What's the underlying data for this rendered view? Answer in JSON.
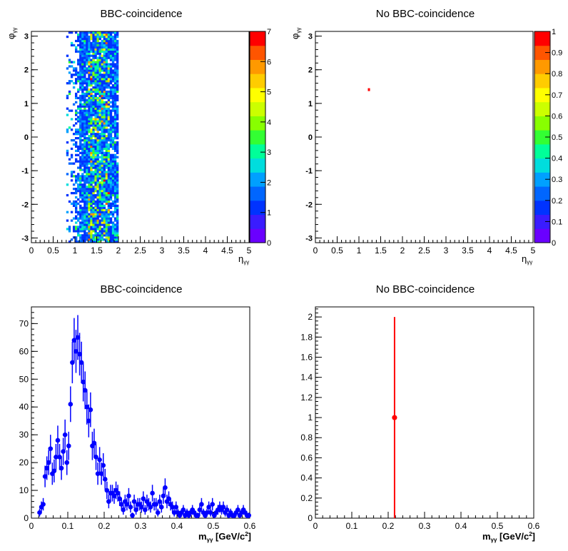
{
  "chart_data": [
    {
      "type": "heatmap",
      "title": "BBC-coincidence",
      "xlabel": "η",
      "xlabel_sub": "γγ",
      "ylabel": "φ",
      "ylabel_sub": "γγ",
      "xlim": [
        0,
        5
      ],
      "ylim": [
        -3.14,
        3.14
      ],
      "xticks": [
        "0",
        "0.5",
        "1",
        "1.5",
        "2",
        "2.5",
        "3",
        "3.5",
        "4",
        "4.5",
        "5"
      ],
      "yticks": [
        "-3",
        "-2",
        "-1",
        "0",
        "1",
        "2",
        "3"
      ],
      "filled_x_range": [
        0.8,
        2.0
      ],
      "peak_x_range": [
        1.3,
        1.8
      ],
      "z_range": [
        0,
        7
      ],
      "colorbar_ticks": [
        "0",
        "1",
        "2",
        "3",
        "4",
        "5",
        "6",
        "7"
      ],
      "colors": [
        "#6a00ff",
        "#3a1cff",
        "#0033ff",
        "#0066ff",
        "#00a0ff",
        "#00dddd",
        "#00ff99",
        "#33ff33",
        "#88ff00",
        "#ccff00",
        "#ffff00",
        "#ffcc00",
        "#ff9900",
        "#ff5500",
        "#ff0000"
      ]
    },
    {
      "type": "heatmap",
      "title": "No BBC-coincidence",
      "xlabel": "η",
      "xlabel_sub": "γγ",
      "ylabel": "φ",
      "ylabel_sub": "γγ",
      "xlim": [
        0,
        5
      ],
      "ylim": [
        -3.14,
        3.14
      ],
      "xticks": [
        "0",
        "0.5",
        "1",
        "1.5",
        "2",
        "2.5",
        "3",
        "3.5",
        "4",
        "4.5",
        "5"
      ],
      "yticks": [
        "-3",
        "-2",
        "-1",
        "0",
        "1",
        "2",
        "3"
      ],
      "points": [
        {
          "x": 1.23,
          "y": 1.42,
          "z": 1
        }
      ],
      "z_range": [
        0,
        1
      ],
      "colorbar_ticks": [
        "0",
        "0.1",
        "0.2",
        "0.3",
        "0.4",
        "0.5",
        "0.6",
        "0.7",
        "0.8",
        "0.9",
        "1"
      ],
      "colors": [
        "#6a00ff",
        "#3a1cff",
        "#0033ff",
        "#0066ff",
        "#00a0ff",
        "#00dddd",
        "#00ff99",
        "#33ff33",
        "#88ff00",
        "#ccff00",
        "#ffff00",
        "#ffcc00",
        "#ff9900",
        "#ff5500",
        "#ff0000"
      ]
    },
    {
      "type": "scatter",
      "title": "BBC-coincidence",
      "xlabel": "m",
      "xlabel_sub": "γγ",
      "xlabel_rest": " [GeV/c",
      "xlabel_sup": "2",
      "xlabel_end": "]",
      "xlim": [
        0,
        0.6
      ],
      "ylim": [
        0,
        76
      ],
      "xticks": [
        "0",
        "0.1",
        "0.2",
        "0.3",
        "0.4",
        "0.5",
        "0.6"
      ],
      "yticks": [
        "0",
        "10",
        "20",
        "30",
        "40",
        "50",
        "60",
        "70"
      ],
      "color": "#0000ff",
      "x": [
        0.0225,
        0.0275,
        0.0325,
        0.0375,
        0.0425,
        0.0475,
        0.0525,
        0.0575,
        0.0625,
        0.0675,
        0.0725,
        0.0775,
        0.0825,
        0.0875,
        0.0925,
        0.0975,
        0.1025,
        0.1075,
        0.1125,
        0.1175,
        0.1225,
        0.1275,
        0.1325,
        0.1375,
        0.1425,
        0.1475,
        0.1525,
        0.1575,
        0.1625,
        0.1675,
        0.1725,
        0.1775,
        0.1825,
        0.1875,
        0.1925,
        0.1975,
        0.2025,
        0.2075,
        0.2125,
        0.2175,
        0.2225,
        0.2275,
        0.2325,
        0.2375,
        0.2425,
        0.2475,
        0.2525,
        0.2575,
        0.2625,
        0.2675,
        0.2725,
        0.2775,
        0.2825,
        0.2875,
        0.2925,
        0.2975,
        0.3025,
        0.3075,
        0.3125,
        0.3175,
        0.3225,
        0.3275,
        0.3325,
        0.3375,
        0.3425,
        0.3475,
        0.3525,
        0.3575,
        0.3625,
        0.3675,
        0.3725,
        0.3775,
        0.3825,
        0.3875,
        0.3925,
        0.3975,
        0.4025,
        0.4075,
        0.4125,
        0.4175,
        0.4225,
        0.4275,
        0.4325,
        0.4375,
        0.4425,
        0.4475,
        0.4525,
        0.4575,
        0.4625,
        0.4675,
        0.4725,
        0.4775,
        0.4825,
        0.4875,
        0.4925,
        0.4975,
        0.5025,
        0.5075,
        0.5125,
        0.5175,
        0.5225,
        0.5275,
        0.5325,
        0.5375,
        0.5425,
        0.5475,
        0.5525,
        0.5575,
        0.5625,
        0.5675,
        0.5725,
        0.5775,
        0.5825,
        0.5875,
        0.5925,
        0.5975
      ],
      "y": [
        2,
        4,
        5,
        15,
        18,
        20,
        25,
        16,
        17,
        22,
        28,
        22,
        18,
        24,
        30,
        20,
        26,
        41,
        56,
        64,
        60,
        65,
        59,
        56,
        49,
        46,
        40,
        35,
        39,
        26,
        27,
        22,
        16,
        21,
        16,
        19,
        14,
        10,
        6,
        9,
        9,
        8,
        10,
        9,
        7,
        5,
        3,
        6,
        5,
        8,
        4,
        1,
        6,
        3,
        5,
        5,
        4,
        7,
        3,
        6,
        5,
        4,
        9,
        5,
        5,
        2,
        6,
        4,
        8,
        11,
        6,
        7,
        5,
        4,
        2,
        4,
        2,
        1,
        2,
        3,
        1,
        2,
        1,
        2,
        3,
        2,
        1,
        1,
        3,
        5,
        2,
        1,
        2,
        4,
        2,
        5,
        1,
        2,
        3,
        4,
        3,
        4,
        2,
        3,
        1,
        2,
        1,
        1,
        2,
        3,
        1,
        2,
        3,
        2,
        1,
        1
      ]
    },
    {
      "type": "scatter",
      "title": "No BBC-coincidence",
      "xlabel": "m",
      "xlabel_sub": "γγ",
      "xlabel_rest": " [GeV/c",
      "xlabel_sup": "2",
      "xlabel_end": "]",
      "xlim": [
        0,
        0.6
      ],
      "ylim": [
        0,
        2.1
      ],
      "xticks": [
        "0",
        "0.1",
        "0.2",
        "0.3",
        "0.4",
        "0.5",
        "0.6"
      ],
      "yticks": [
        "0",
        "0.2",
        "0.4",
        "0.6",
        "0.8",
        "1",
        "1.2",
        "1.4",
        "1.6",
        "1.8",
        "2"
      ],
      "color": "#ff0000",
      "x": [
        0.2175
      ],
      "y": [
        1
      ],
      "yerr": [
        1
      ]
    }
  ]
}
